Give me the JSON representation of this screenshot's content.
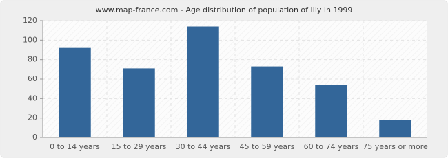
{
  "chart_data": {
    "type": "bar",
    "title": "www.map-france.com - Age distribution of population of Illy in 1999",
    "categories": [
      "0 to 14 years",
      "15 to 29 years",
      "30 to 44 years",
      "45 to 59 years",
      "60 to 74 years",
      "75 years or more"
    ],
    "values": [
      92,
      71,
      114,
      73,
      54,
      18
    ],
    "color": "#336699",
    "ylim": [
      0,
      120
    ],
    "yticks": [
      0,
      20,
      40,
      60,
      80,
      100,
      120
    ],
    "grid": true
  }
}
